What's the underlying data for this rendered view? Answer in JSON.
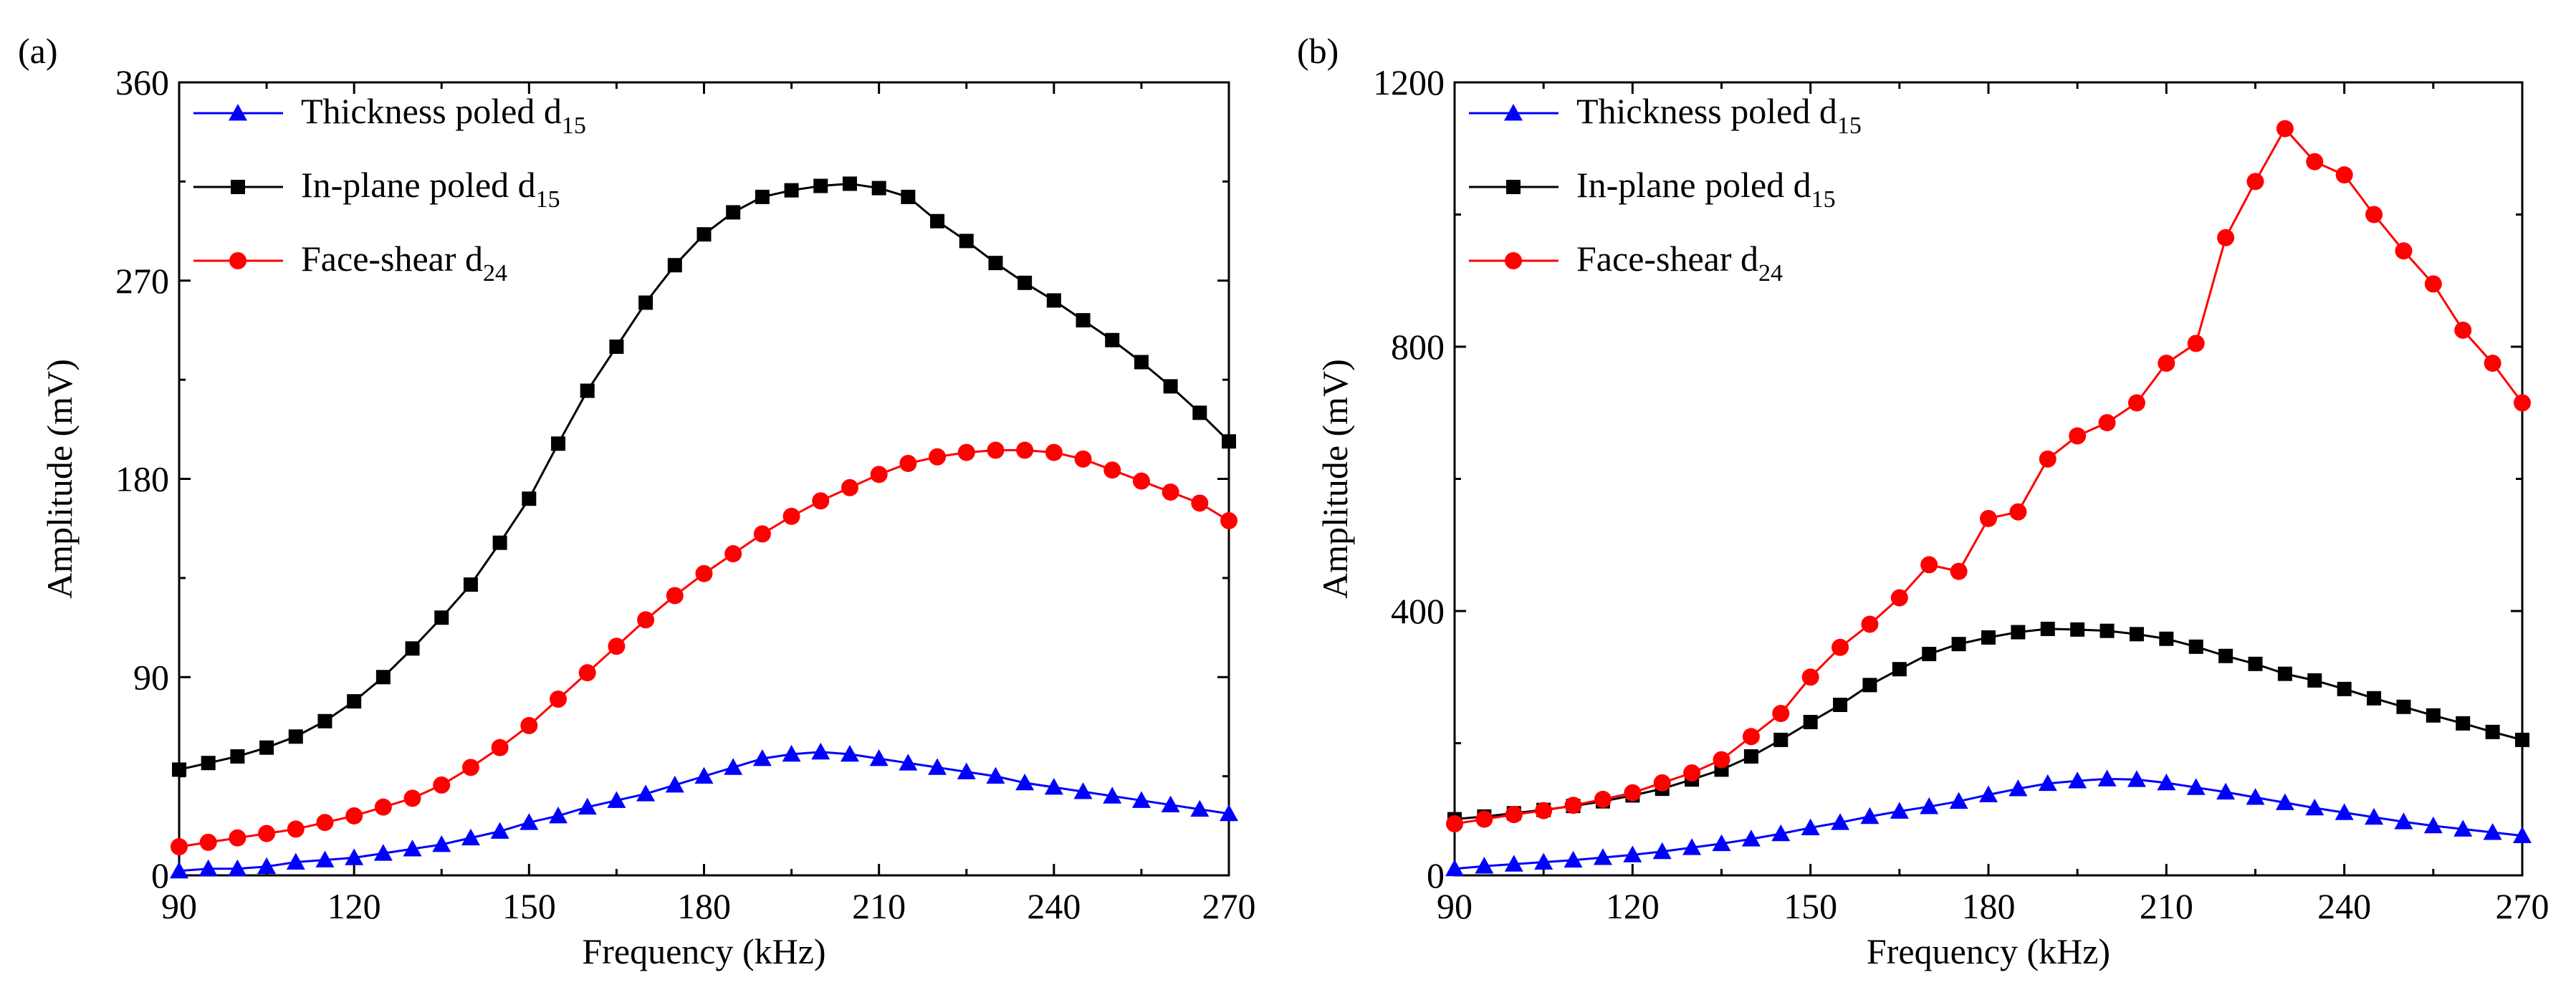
{
  "chart_data": [
    {
      "panel_label": "(a)",
      "type": "line",
      "xlabel": "Frequency (kHz)",
      "ylabel": "Amplitude (mV)",
      "xlim": [
        90,
        270
      ],
      "ylim": [
        0,
        360
      ],
      "xticks": [
        90,
        120,
        150,
        180,
        210,
        240,
        270
      ],
      "yticks": [
        0,
        90,
        180,
        270,
        360
      ],
      "legend_position": "top-left",
      "series": [
        {
          "name": "Thickness poled d15",
          "name_main": "Thickness poled d",
          "name_sub": "15",
          "color": "#0000ff",
          "marker": "triangle",
          "x": [
            90,
            95,
            100,
            105,
            110,
            115,
            120,
            125,
            130,
            135,
            140,
            145,
            150,
            155,
            160,
            165,
            170,
            175,
            180,
            185,
            190,
            195,
            200,
            205,
            210,
            215,
            220,
            225,
            230,
            235,
            240,
            245,
            250,
            255,
            260,
            265,
            270
          ],
          "y": [
            2,
            3,
            3,
            4,
            6,
            7,
            8,
            10,
            12,
            14,
            17,
            20,
            24,
            27,
            31,
            34,
            37,
            41,
            45,
            49,
            53,
            55,
            56,
            55,
            53,
            51,
            49,
            47,
            45,
            42,
            40,
            38,
            36,
            34,
            32,
            30,
            28
          ]
        },
        {
          "name": "In-plane poled d15",
          "name_main": "In-plane poled d",
          "name_sub": "15",
          "color": "#000000",
          "marker": "square",
          "x": [
            90,
            95,
            100,
            105,
            110,
            115,
            120,
            125,
            130,
            135,
            140,
            145,
            150,
            155,
            160,
            165,
            170,
            175,
            180,
            185,
            190,
            195,
            200,
            205,
            210,
            215,
            220,
            225,
            230,
            235,
            240,
            245,
            250,
            255,
            260,
            265,
            270
          ],
          "y": [
            48,
            51,
            54,
            58,
            63,
            70,
            79,
            90,
            103,
            117,
            132,
            151,
            171,
            196,
            220,
            240,
            260,
            277,
            291,
            301,
            308,
            311,
            313,
            314,
            312,
            308,
            297,
            288,
            278,
            269,
            261,
            252,
            243,
            233,
            222,
            210,
            197
          ]
        },
        {
          "name": "Face-shear d24",
          "name_main": "Face-shear d",
          "name_sub": "24",
          "color": "#ff0000",
          "marker": "circle",
          "x": [
            90,
            95,
            100,
            105,
            110,
            115,
            120,
            125,
            130,
            135,
            140,
            145,
            150,
            155,
            160,
            165,
            170,
            175,
            180,
            185,
            190,
            195,
            200,
            205,
            210,
            215,
            220,
            225,
            230,
            235,
            240,
            245,
            250,
            255,
            260,
            265,
            270
          ],
          "y": [
            13,
            15,
            17,
            19,
            21,
            24,
            27,
            31,
            35,
            41,
            49,
            58,
            68,
            80,
            92,
            104,
            116,
            127,
            137,
            146,
            155,
            163,
            170,
            176,
            182,
            187,
            190,
            192,
            193,
            193,
            192,
            189,
            184,
            179,
            174,
            169,
            161
          ]
        }
      ]
    },
    {
      "panel_label": "(b)",
      "type": "line",
      "xlabel": "Frequency (kHz)",
      "ylabel": "Amplitude (mV)",
      "xlim": [
        90,
        270
      ],
      "ylim": [
        0,
        1200
      ],
      "xticks": [
        90,
        120,
        150,
        180,
        210,
        240,
        270
      ],
      "yticks": [
        0,
        400,
        800,
        1200
      ],
      "legend_position": "top-left",
      "series": [
        {
          "name": "Thickness poled d15",
          "name_main": "Thickness poled d",
          "name_sub": "15",
          "color": "#0000ff",
          "marker": "triangle",
          "x": [
            90,
            95,
            100,
            105,
            110,
            115,
            120,
            125,
            130,
            135,
            140,
            145,
            150,
            155,
            160,
            165,
            170,
            175,
            180,
            185,
            190,
            195,
            200,
            205,
            210,
            215,
            220,
            225,
            230,
            235,
            240,
            245,
            250,
            255,
            260,
            265,
            270
          ],
          "y": [
            10,
            14,
            17,
            20,
            23,
            27,
            31,
            36,
            42,
            48,
            55,
            63,
            72,
            80,
            89,
            97,
            104,
            112,
            122,
            131,
            139,
            143,
            146,
            145,
            140,
            133,
            126,
            118,
            110,
            102,
            95,
            88,
            81,
            75,
            70,
            65,
            60
          ]
        },
        {
          "name": "In-plane poled d15",
          "name_main": "In-plane poled d",
          "name_sub": "15",
          "color": "#000000",
          "marker": "square",
          "x": [
            90,
            95,
            100,
            105,
            110,
            115,
            120,
            125,
            130,
            135,
            140,
            145,
            150,
            155,
            160,
            165,
            170,
            175,
            180,
            185,
            190,
            195,
            200,
            205,
            210,
            215,
            220,
            225,
            230,
            235,
            240,
            245,
            250,
            255,
            260,
            265,
            270
          ],
          "y": [
            85,
            89,
            94,
            99,
            105,
            112,
            121,
            131,
            145,
            160,
            180,
            205,
            232,
            258,
            288,
            312,
            335,
            350,
            360,
            368,
            373,
            372,
            370,
            365,
            358,
            346,
            332,
            320,
            305,
            295,
            282,
            268,
            255,
            242,
            230,
            217,
            205
          ]
        },
        {
          "name": "Face-shear d24",
          "name_main": "Face-shear d",
          "name_sub": "24",
          "color": "#ff0000",
          "marker": "circle",
          "x": [
            90,
            95,
            100,
            105,
            110,
            115,
            120,
            125,
            130,
            135,
            140,
            145,
            150,
            155,
            160,
            165,
            170,
            175,
            180,
            185,
            190,
            195,
            200,
            205,
            210,
            215,
            220,
            225,
            230,
            235,
            240,
            245,
            250,
            255,
            260,
            265,
            270
          ],
          "y": [
            78,
            85,
            92,
            98,
            106,
            115,
            125,
            140,
            155,
            175,
            210,
            245,
            300,
            345,
            380,
            420,
            470,
            460,
            540,
            550,
            630,
            665,
            685,
            715,
            775,
            805,
            965,
            1050,
            1130,
            1080,
            1060,
            1000,
            945,
            895,
            825,
            775,
            715
          ]
        }
      ]
    }
  ]
}
